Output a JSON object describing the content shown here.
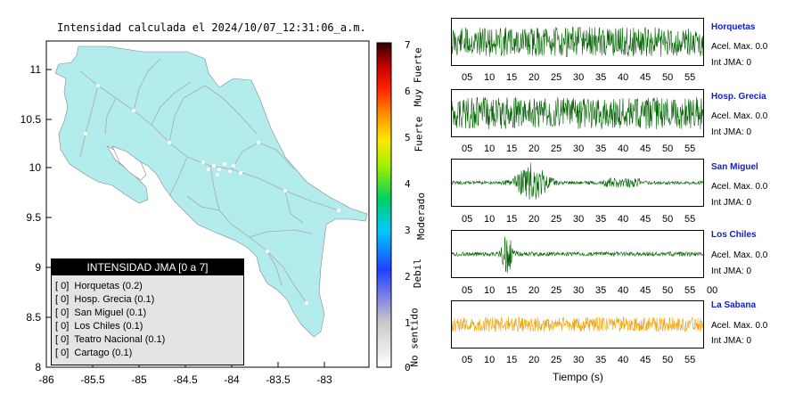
{
  "map": {
    "title": "Intensidad calculada el 2024/10/07_12:31:06_a.m.",
    "y_ticks": [
      "11",
      "10.5",
      "10",
      "9.5",
      "9",
      "8.5",
      "8"
    ],
    "x_ticks": [
      "-86",
      "-85.5",
      "-85",
      "-84.5",
      "-84",
      "-83.5",
      "-83"
    ],
    "land_color": "#b3ecec",
    "road_color": "#aaaaaa"
  },
  "legend": {
    "title": "INTENSIDAD JMA [0 a 7]",
    "items": [
      {
        "level": "[ 0]",
        "station": "Horquetas (0.2)"
      },
      {
        "level": "[ 0]",
        "station": "Hosp. Grecia (0.1)"
      },
      {
        "level": "[ 0]",
        "station": "San Miguel (0.1)"
      },
      {
        "level": "[ 0]",
        "station": "Los Chiles (0.1)"
      },
      {
        "level": "[ 0]",
        "station": "Teatro Nacional (0.1)"
      },
      {
        "level": "[ 0]",
        "station": "Cartago (0.1)"
      }
    ]
  },
  "scale": {
    "ticks": [
      "7",
      "6",
      "5",
      "4",
      "3",
      "2",
      "1",
      "0"
    ],
    "categories": [
      "Muy Fuerte",
      "Fuerte",
      "Moderado",
      "Debil",
      "No sentido"
    ]
  },
  "traces": {
    "x_ticks": [
      "05",
      "10",
      "15",
      "20",
      "25",
      "30",
      "35",
      "40",
      "45",
      "50",
      "55"
    ],
    "x_ticks_alt": [
      "05",
      "10",
      "15",
      "20",
      "25",
      "30",
      "35",
      "40",
      "45",
      "50",
      "55",
      "00"
    ],
    "time_label": "Tiempo (s)",
    "stations": [
      {
        "name": "Horquetas",
        "accel": "Acel. Max. 0.0",
        "int": "Int JMA: 0",
        "color": "#006400"
      },
      {
        "name": "Hosp. Grecia",
        "accel": "Acel. Max. 0.0",
        "int": "Int JMA: 0",
        "color": "#006400"
      },
      {
        "name": "San Miguel",
        "accel": "Acel. Max. 0.0",
        "int": "Int JMA: 0",
        "color": "#006400"
      },
      {
        "name": "Los Chiles",
        "accel": "Acel. Max. 0.0",
        "int": "Int JMA: 0",
        "color": "#006400"
      },
      {
        "name": "La Sabana",
        "accel": "Acel. Max. 0.0",
        "int": "Int JMA: 0",
        "color": "#f0a000"
      }
    ]
  }
}
